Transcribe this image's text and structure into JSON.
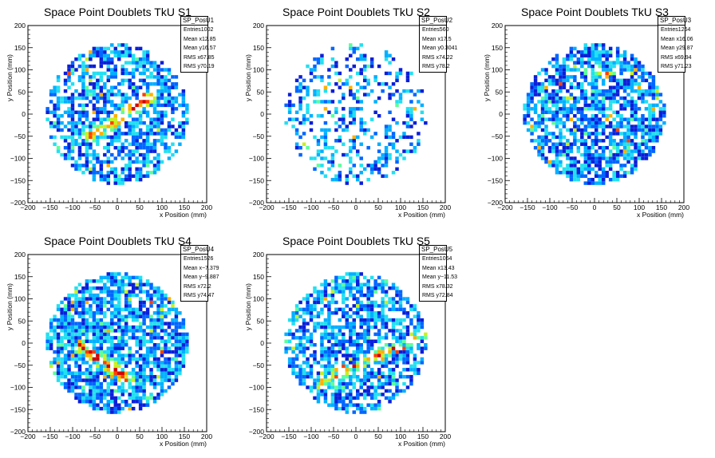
{
  "colors": {
    "palette": [
      "#0a1fd8",
      "#0066ff",
      "#00b0ff",
      "#22e0f0",
      "#5dff9a",
      "#c8f020",
      "#ffb000",
      "#ff4000",
      "#d40000"
    ]
  },
  "chart_data": [
    {
      "type": "heatmap",
      "title": "Space Point Doublets TkU S1",
      "xlabel": "x Position (mm)",
      "ylabel": "y Position (mm)",
      "xlim": [
        -200,
        200
      ],
      "ylim": [
        -200,
        200
      ],
      "xticks": [
        "−200",
        "−150",
        "−100",
        "−50",
        "0",
        "50",
        "100",
        "150",
        "200"
      ],
      "yticks": [
        "200",
        "150",
        "100",
        "50",
        "0",
        "−50",
        "−100",
        "−150",
        "−200"
      ],
      "grid": false,
      "stats_position": "top-right",
      "region": "disk of radius ~160 mm",
      "hot_region": "band along the diagonal from (−60,−50) to (80,40)",
      "stats": {
        "name": "SP_PosU1",
        "rows": [
          {
            "label": "Entries",
            "value": "1002"
          },
          {
            "label": "Mean x",
            "value": "12.85"
          },
          {
            "label": "Mean y",
            "value": "16.57"
          },
          {
            "label": "RMS x",
            "value": "67.85"
          },
          {
            "label": "RMS y",
            "value": "70.19"
          }
        ]
      }
    },
    {
      "type": "heatmap",
      "title": "Space Point Doublets TkU S2",
      "xlabel": "x Position (mm)",
      "ylabel": "y Position (mm)",
      "xlim": [
        -200,
        200
      ],
      "ylim": [
        -200,
        200
      ],
      "xticks": [
        "−200",
        "−150",
        "−100",
        "−50",
        "0",
        "50",
        "100",
        "150",
        "200"
      ],
      "yticks": [
        "200",
        "150",
        "100",
        "50",
        "0",
        "−50",
        "−100",
        "−150",
        "−200"
      ],
      "grid": false,
      "stats_position": "top-right",
      "region": "disk of radius ~160 mm, sparse",
      "stats": {
        "name": "SP_PosU2",
        "rows": [
          {
            "label": "Entries",
            "value": "560"
          },
          {
            "label": "Mean x",
            "value": "17.5"
          },
          {
            "label": "Mean y",
            "value": "0.3041"
          },
          {
            "label": "RMS x",
            "value": "74.22"
          },
          {
            "label": "RMS y",
            "value": "78.2"
          }
        ]
      }
    },
    {
      "type": "heatmap",
      "title": "Space Point Doublets TkU S3",
      "xlabel": "x Position (mm)",
      "ylabel": "y Position (mm)",
      "xlim": [
        -200,
        200
      ],
      "ylim": [
        -200,
        200
      ],
      "xticks": [
        "−200",
        "−150",
        "−100",
        "−50",
        "0",
        "50",
        "100",
        "150",
        "200"
      ],
      "yticks": [
        "200",
        "150",
        "100",
        "50",
        "0",
        "−50",
        "−100",
        "−150",
        "−200"
      ],
      "grid": false,
      "stats_position": "top-right",
      "region": "disk of radius ~160 mm",
      "stats": {
        "name": "SP_PosU3",
        "rows": [
          {
            "label": "Entries",
            "value": "1264"
          },
          {
            "label": "Mean x",
            "value": "16.06"
          },
          {
            "label": "Mean y",
            "value": "29.87"
          },
          {
            "label": "RMS x",
            "value": "69.94"
          },
          {
            "label": "RMS y",
            "value": "71.23"
          }
        ]
      }
    },
    {
      "type": "heatmap",
      "title": "Space Point Doublets TkU S4",
      "xlabel": "x Position (mm)",
      "ylabel": "y Position (mm)",
      "xlim": [
        -200,
        200
      ],
      "ylim": [
        -200,
        200
      ],
      "xticks": [
        "−200",
        "−150",
        "−100",
        "−50",
        "0",
        "50",
        "100",
        "150",
        "200"
      ],
      "yticks": [
        "200",
        "150",
        "100",
        "50",
        "0",
        "−50",
        "−100",
        "−150",
        "−200"
      ],
      "grid": false,
      "stats_position": "top-right",
      "region": "disk of radius ~160 mm",
      "hot_region": "band from (−80,−10) to (20,−80)",
      "stats": {
        "name": "SP_PosU4",
        "rows": [
          {
            "label": "Entries",
            "value": "1526"
          },
          {
            "label": "Mean x",
            "value": "−7.379"
          },
          {
            "label": "Mean y",
            "value": "−9.887"
          },
          {
            "label": "RMS x",
            "value": "72.2"
          },
          {
            "label": "RMS y",
            "value": "74.47"
          }
        ]
      }
    },
    {
      "type": "heatmap",
      "title": "Space Point Doublets TkU S5",
      "xlabel": "x Position (mm)",
      "ylabel": "y Position (mm)",
      "xlim": [
        -200,
        200
      ],
      "ylim": [
        -200,
        200
      ],
      "xticks": [
        "−200",
        "−150",
        "−100",
        "−50",
        "0",
        "50",
        "100",
        "150",
        "200"
      ],
      "yticks": [
        "200",
        "150",
        "100",
        "50",
        "0",
        "−50",
        "−100",
        "−150",
        "−200"
      ],
      "grid": false,
      "stats_position": "top-right",
      "region": "disk of radius ~160 mm",
      "hot_region": "band from (−80,−90) to (150,20)",
      "stats": {
        "name": "SP_PosU5",
        "rows": [
          {
            "label": "Entries",
            "value": "1064"
          },
          {
            "label": "Mean x",
            "value": "13.43"
          },
          {
            "label": "Mean y",
            "value": "−11.53"
          },
          {
            "label": "RMS x",
            "value": "78.32"
          },
          {
            "label": "RMS y",
            "value": "72.84"
          }
        ]
      }
    }
  ]
}
